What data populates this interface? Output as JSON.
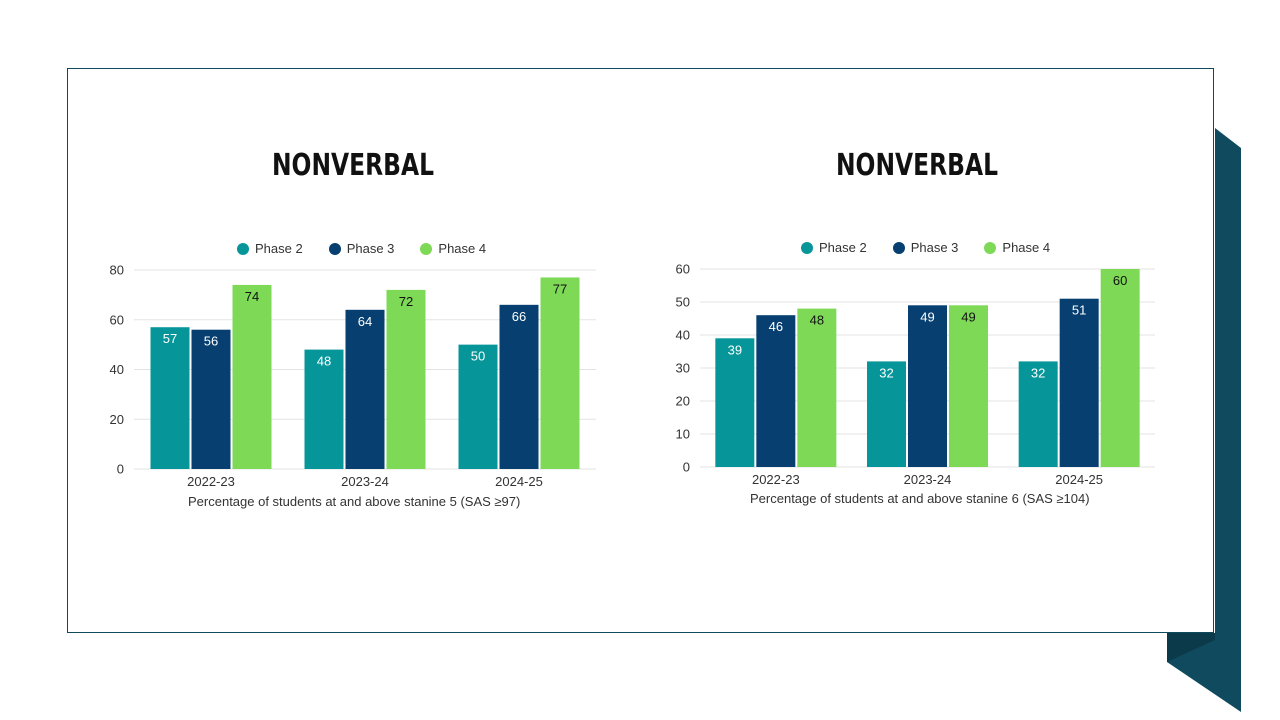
{
  "colors": {
    "phase2": "#06969A",
    "phase3": "#063F70",
    "phase4": "#7ED957",
    "frame": "#0E4A5C",
    "dots": "#0E8C84",
    "dark_panel": "#0F4A5E"
  },
  "chart_data": [
    {
      "type": "bar",
      "title": "NONVERBAL",
      "xlabel": "Percentage of students at and above stanine 5 (SAS ≥97)",
      "ylabel": "",
      "categories": [
        "2022-23",
        "2023-24",
        "2024-25"
      ],
      "series": [
        {
          "name": "Phase 2",
          "values": [
            57,
            48,
            50
          ]
        },
        {
          "name": "Phase 3",
          "values": [
            56,
            64,
            66
          ]
        },
        {
          "name": "Phase 4",
          "values": [
            74,
            72,
            77
          ]
        }
      ],
      "ylim": [
        0,
        80
      ],
      "yticks": [
        0,
        20,
        40,
        60,
        80
      ],
      "grid": true,
      "legend": "top"
    },
    {
      "type": "bar",
      "title": "NONVERBAL",
      "xlabel": "Percentage of students at and above stanine 6 (SAS ≥104)",
      "ylabel": "",
      "categories": [
        "2022-23",
        "2023-24",
        "2024-25"
      ],
      "series": [
        {
          "name": "Phase 2",
          "values": [
            39,
            32,
            32
          ]
        },
        {
          "name": "Phase 3",
          "values": [
            46,
            49,
            51
          ]
        },
        {
          "name": "Phase 4",
          "values": [
            48,
            49,
            60
          ]
        }
      ],
      "ylim": [
        0,
        60
      ],
      "yticks": [
        0,
        10,
        20,
        30,
        40,
        50,
        60
      ],
      "grid": true,
      "legend": "top"
    }
  ]
}
